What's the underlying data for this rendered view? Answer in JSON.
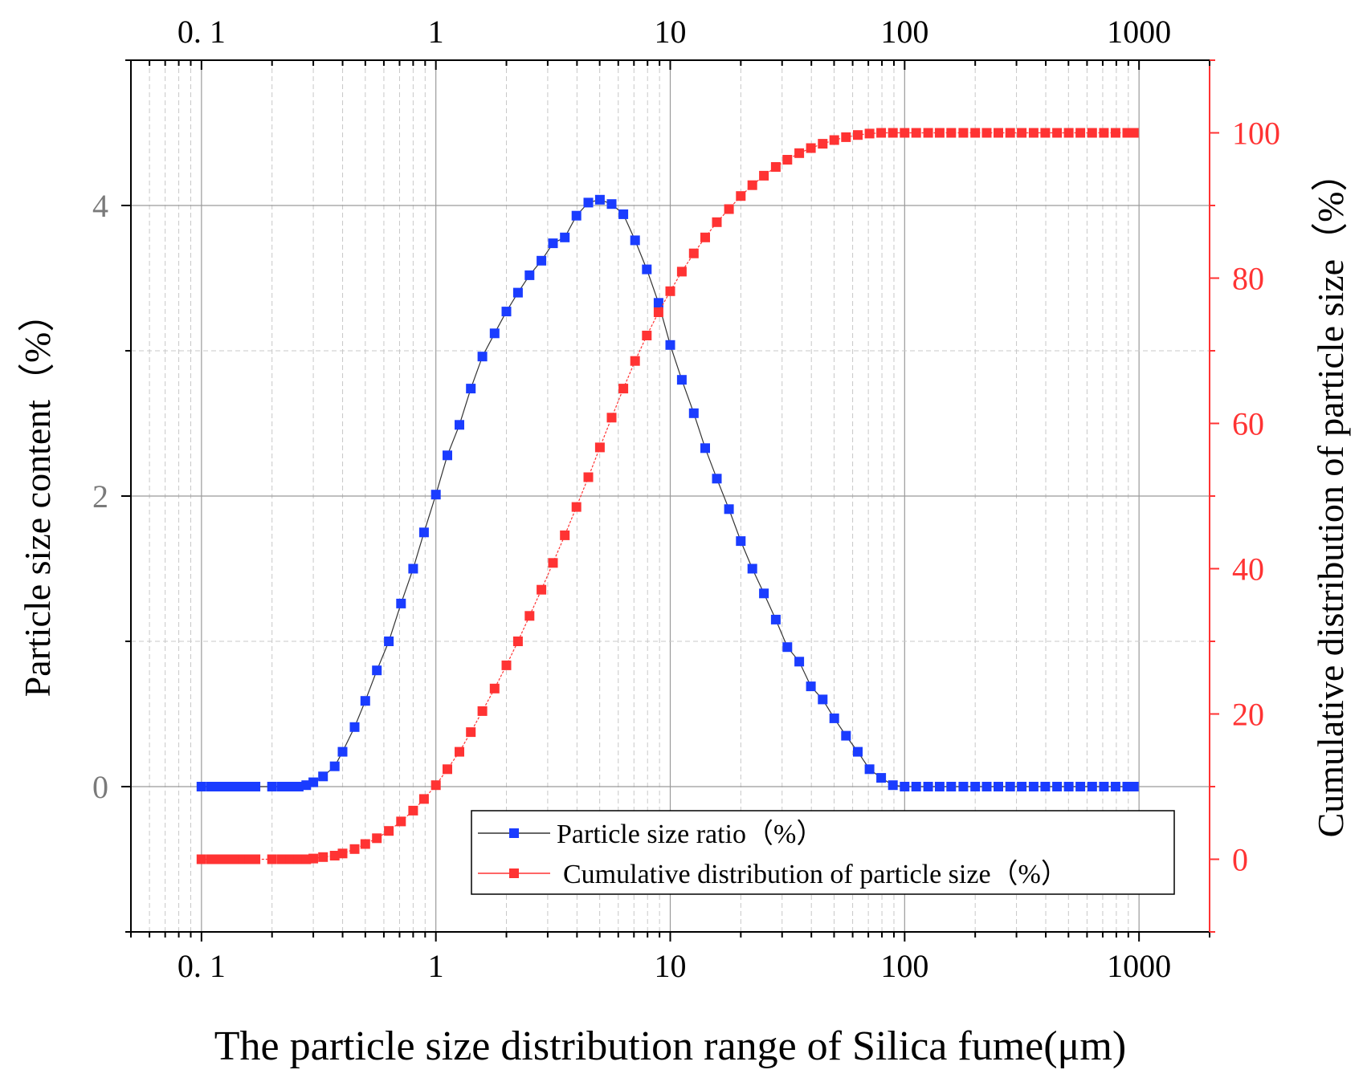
{
  "chart_data": {
    "type": "scatter",
    "title": "",
    "xlabel": "The particle size distribution range of Silica fume(μm)",
    "ylabel": "Particle size content（%）",
    "y2label": "Cumulative distribution of particle size（%）",
    "xscale": "log",
    "xlim": [
      0.05,
      2000
    ],
    "ylim": [
      -1,
      5
    ],
    "y2lim": [
      -10,
      110
    ],
    "grid": true,
    "legend_position": "bottom-right",
    "x_ticks": [
      0.1,
      1,
      10,
      100,
      1000
    ],
    "x_tick_labels": [
      "0. 1",
      "1",
      "10",
      "100",
      "1000"
    ],
    "y_ticks": [
      0,
      2,
      4
    ],
    "y_tick_labels": [
      "0",
      "2",
      "4"
    ],
    "y2_ticks": [
      0,
      20,
      40,
      60,
      80,
      100
    ],
    "y2_tick_labels": [
      "0",
      "20",
      "40",
      "60",
      "80",
      "100"
    ],
    "colors": {
      "series1": "#1a3cff",
      "series2": "#ff3333",
      "axis_right": "#ff3333"
    },
    "series": [
      {
        "name": "Particle size ratio（%）",
        "axis": "left",
        "color": "#1a3cff",
        "x": [
          0.1,
          0.11,
          0.12,
          0.13,
          0.14,
          0.15,
          0.16,
          0.17,
          0.2,
          0.22,
          0.24,
          0.26,
          0.28,
          0.3,
          0.33,
          0.37,
          0.4,
          0.45,
          0.5,
          0.56,
          0.63,
          0.71,
          0.8,
          0.89,
          1.0,
          1.12,
          1.26,
          1.41,
          1.58,
          1.78,
          2.0,
          2.24,
          2.51,
          2.82,
          3.16,
          3.55,
          3.98,
          4.47,
          5.01,
          5.62,
          6.31,
          7.08,
          7.94,
          8.91,
          10.0,
          11.2,
          12.6,
          14.1,
          15.8,
          17.8,
          20.0,
          22.4,
          25.1,
          28.2,
          31.6,
          35.5,
          39.8,
          44.7,
          50.1,
          56.2,
          63.1,
          70.8,
          79.4,
          89.1,
          100,
          112,
          126,
          141,
          158,
          178,
          200,
          224,
          251,
          282,
          316,
          355,
          398,
          447,
          501,
          562,
          631,
          708,
          794,
          891,
          950
        ],
        "values": [
          0,
          0,
          0,
          0,
          0,
          0,
          0,
          0,
          0,
          0,
          0,
          0,
          0.01,
          0.03,
          0.07,
          0.14,
          0.24,
          0.41,
          0.59,
          0.8,
          1.0,
          1.26,
          1.5,
          1.75,
          2.01,
          2.28,
          2.49,
          2.74,
          2.96,
          3.12,
          3.27,
          3.4,
          3.52,
          3.62,
          3.74,
          3.78,
          3.93,
          4.02,
          4.04,
          4.01,
          3.94,
          3.76,
          3.56,
          3.33,
          3.04,
          2.8,
          2.57,
          2.33,
          2.12,
          1.91,
          1.69,
          1.5,
          1.33,
          1.15,
          0.96,
          0.86,
          0.69,
          0.6,
          0.47,
          0.35,
          0.24,
          0.12,
          0.06,
          0.01,
          0,
          0,
          0,
          0,
          0,
          0,
          0,
          0,
          0,
          0,
          0,
          0,
          0,
          0,
          0,
          0,
          0,
          0,
          0,
          0,
          0
        ]
      },
      {
        "name": "Cumulative distribution of particle size（%）",
        "axis": "right",
        "color": "#ff3333",
        "x": [
          0.1,
          0.11,
          0.12,
          0.13,
          0.14,
          0.15,
          0.16,
          0.17,
          0.2,
          0.22,
          0.24,
          0.26,
          0.28,
          0.3,
          0.33,
          0.37,
          0.4,
          0.45,
          0.5,
          0.56,
          0.63,
          0.71,
          0.8,
          0.89,
          1.0,
          1.12,
          1.26,
          1.41,
          1.58,
          1.78,
          2.0,
          2.24,
          2.51,
          2.82,
          3.16,
          3.55,
          3.98,
          4.47,
          5.01,
          5.62,
          6.31,
          7.08,
          7.94,
          8.91,
          10.0,
          11.2,
          12.6,
          14.1,
          15.8,
          17.8,
          20.0,
          22.4,
          25.1,
          28.2,
          31.6,
          35.5,
          39.8,
          44.7,
          50.1,
          56.2,
          63.1,
          70.8,
          79.4,
          89.1,
          100,
          112,
          126,
          141,
          158,
          178,
          200,
          224,
          251,
          282,
          316,
          355,
          398,
          447,
          501,
          562,
          631,
          708,
          794,
          891,
          950
        ],
        "values": [
          0,
          0,
          0,
          0,
          0,
          0,
          0,
          0,
          0,
          0,
          0,
          0,
          0,
          0.1,
          0.3,
          0.5,
          0.8,
          1.4,
          2.1,
          2.9,
          3.9,
          5.2,
          6.7,
          8.3,
          10.2,
          12.4,
          14.8,
          17.5,
          20.4,
          23.5,
          26.7,
          30.0,
          33.5,
          37.1,
          40.8,
          44.6,
          48.5,
          52.6,
          56.7,
          60.8,
          64.8,
          68.6,
          72.1,
          75.3,
          78.2,
          80.9,
          83.4,
          85.6,
          87.7,
          89.5,
          91.3,
          92.8,
          94.1,
          95.3,
          96.3,
          97.2,
          97.9,
          98.5,
          99.0,
          99.4,
          99.7,
          99.9,
          100,
          100,
          100,
          100,
          100,
          100,
          100,
          100,
          100,
          100,
          100,
          100,
          100,
          100,
          100,
          100,
          100,
          100,
          100,
          100,
          100,
          100,
          100
        ]
      }
    ]
  }
}
